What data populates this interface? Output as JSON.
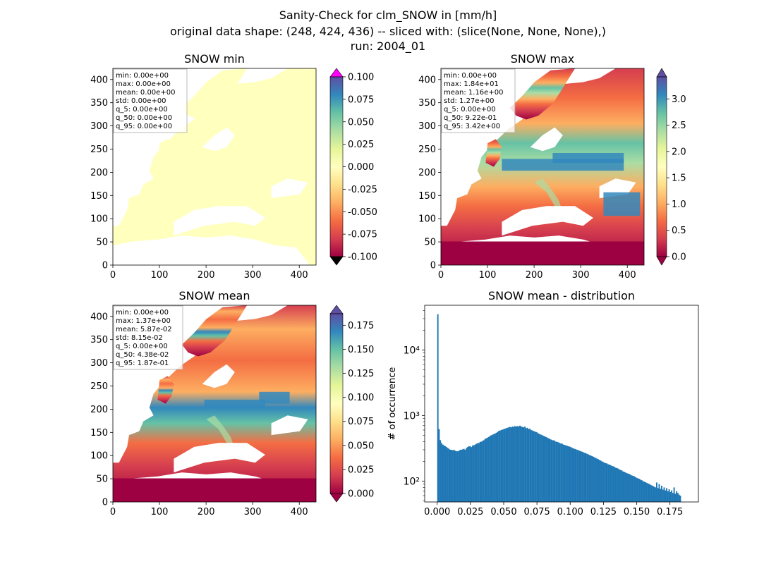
{
  "figure": {
    "title_lines": [
      "Sanity-Check for clm_SNOW in [mm/h]",
      "original data shape: (248, 424, 436) -- sliced with: (slice(None, None, None),)",
      "run: 2004_01"
    ]
  },
  "chart_data": [
    {
      "type": "heatmap",
      "title": "SNOW min",
      "xlim": [
        0,
        436
      ],
      "ylim": [
        0,
        424
      ],
      "xticks": [
        0,
        100,
        200,
        300,
        400
      ],
      "yticks": [
        0,
        50,
        100,
        150,
        200,
        250,
        300,
        350,
        400
      ],
      "colorbar": {
        "colormap": "Spectral",
        "range": [
          -0.1,
          0.1
        ],
        "ticks": [
          "-0.100",
          "-0.075",
          "-0.050",
          "-0.025",
          "0.000",
          "0.025",
          "0.050",
          "0.075",
          "0.100"
        ],
        "extend_colors": {
          "over": "#ff00ff",
          "under": "#000000"
        }
      },
      "stats": [
        "min: 0.00e+00",
        "max: 0.00e+00",
        "mean: 0.00e+00",
        "std: 0.00e+00",
        "q_5: 0.00e+00",
        "q_50: 0.00e+00",
        "q_95: 0.00e+00"
      ]
    },
    {
      "type": "heatmap",
      "title": "SNOW max",
      "xlim": [
        0,
        436
      ],
      "ylim": [
        0,
        424
      ],
      "xticks": [
        0,
        100,
        200,
        300,
        400
      ],
      "yticks": [
        0,
        50,
        100,
        150,
        200,
        250,
        300,
        350,
        400
      ],
      "colorbar": {
        "colormap": "Spectral",
        "range": [
          0,
          3.42
        ],
        "ticks": [
          "0.0",
          "0.5",
          "1.0",
          "1.5",
          "2.0",
          "2.5",
          "3.0"
        ]
      },
      "stats": [
        "min: 0.00e+00",
        "max: 1.84e+01",
        "mean: 1.16e+00",
        "std: 1.27e+00",
        "q_5: 0.00e+00",
        "q_50: 9.22e-01",
        "q_95: 3.42e+00"
      ]
    },
    {
      "type": "heatmap",
      "title": "SNOW mean",
      "xlim": [
        0,
        436
      ],
      "ylim": [
        0,
        424
      ],
      "xticks": [
        0,
        100,
        200,
        300,
        400
      ],
      "yticks": [
        0,
        50,
        100,
        150,
        200,
        250,
        300,
        350,
        400
      ],
      "colorbar": {
        "colormap": "Spectral",
        "range": [
          0,
          0.187
        ],
        "ticks": [
          "0.000",
          "0.025",
          "0.050",
          "0.075",
          "0.100",
          "0.125",
          "0.150",
          "0.175"
        ]
      },
      "stats": [
        "min: 0.00e+00",
        "max: 1.37e+00",
        "mean: 5.87e-02",
        "std: 8.15e-02",
        "q_5: 0.00e+00",
        "q_50: 4.38e-02",
        "q_95: 1.87e-01"
      ]
    },
    {
      "type": "bar",
      "title": "SNOW mean - distribution",
      "xlabel": "",
      "ylabel": "# of occurrence",
      "yscale": "log",
      "xlim": [
        -0.0094,
        0.1964
      ],
      "ylim": [
        48,
        48000
      ],
      "xticks": [
        "0.000",
        "0.025",
        "0.050",
        "0.075",
        "0.100",
        "0.125",
        "0.150",
        "0.175"
      ],
      "yticks": [
        {
          "value": 100,
          "label": "10²"
        },
        {
          "value": 1000,
          "label": "10³"
        },
        {
          "value": 10000,
          "label": "10⁴"
        }
      ],
      "bar_color": "#1f77b4",
      "bins": {
        "start": 0.0,
        "width": 0.000935,
        "counts": [
          35000,
          620,
          420,
          380,
          360,
          350,
          340,
          330,
          320,
          310,
          300,
          300,
          295,
          300,
          290,
          285,
          285,
          290,
          300,
          300,
          305,
          310,
          300,
          320,
          330,
          340,
          340,
          330,
          350,
          350,
          360,
          370,
          380,
          380,
          395,
          400,
          410,
          420,
          440,
          450,
          460,
          470,
          490,
          500,
          510,
          520,
          530,
          545,
          560,
          580,
          590,
          600,
          610,
          620,
          630,
          640,
          650,
          660,
          670,
          660,
          680,
          670,
          690,
          680,
          690,
          680,
          700,
          680,
          670,
          660,
          680,
          640,
          650,
          620,
          630,
          600,
          590,
          580,
          570,
          560,
          550,
          530,
          520,
          510,
          500,
          490,
          480,
          470,
          460,
          450,
          440,
          430,
          420,
          420,
          410,
          400,
          395,
          390,
          380,
          375,
          370,
          360,
          355,
          350,
          345,
          340,
          335,
          330,
          320,
          315,
          310,
          305,
          300,
          295,
          290,
          285,
          280,
          275,
          270,
          265,
          260,
          255,
          250,
          245,
          240,
          235,
          230,
          225,
          220,
          215,
          210,
          205,
          200,
          195,
          190,
          188,
          185,
          180,
          178,
          175,
          170,
          168,
          165,
          160,
          158,
          155,
          150,
          148,
          145,
          140,
          138,
          135,
          132,
          130,
          128,
          125,
          122,
          120,
          118,
          115,
          112,
          110,
          108,
          105,
          103,
          100,
          98,
          96,
          94,
          92,
          90,
          88,
          86,
          84,
          82,
          80,
          95,
          78,
          90,
          76,
          85,
          74,
          80,
          72,
          78,
          70,
          75,
          68,
          72,
          66,
          80,
          64,
          70,
          66,
          62,
          60
        ]
      }
    }
  ]
}
